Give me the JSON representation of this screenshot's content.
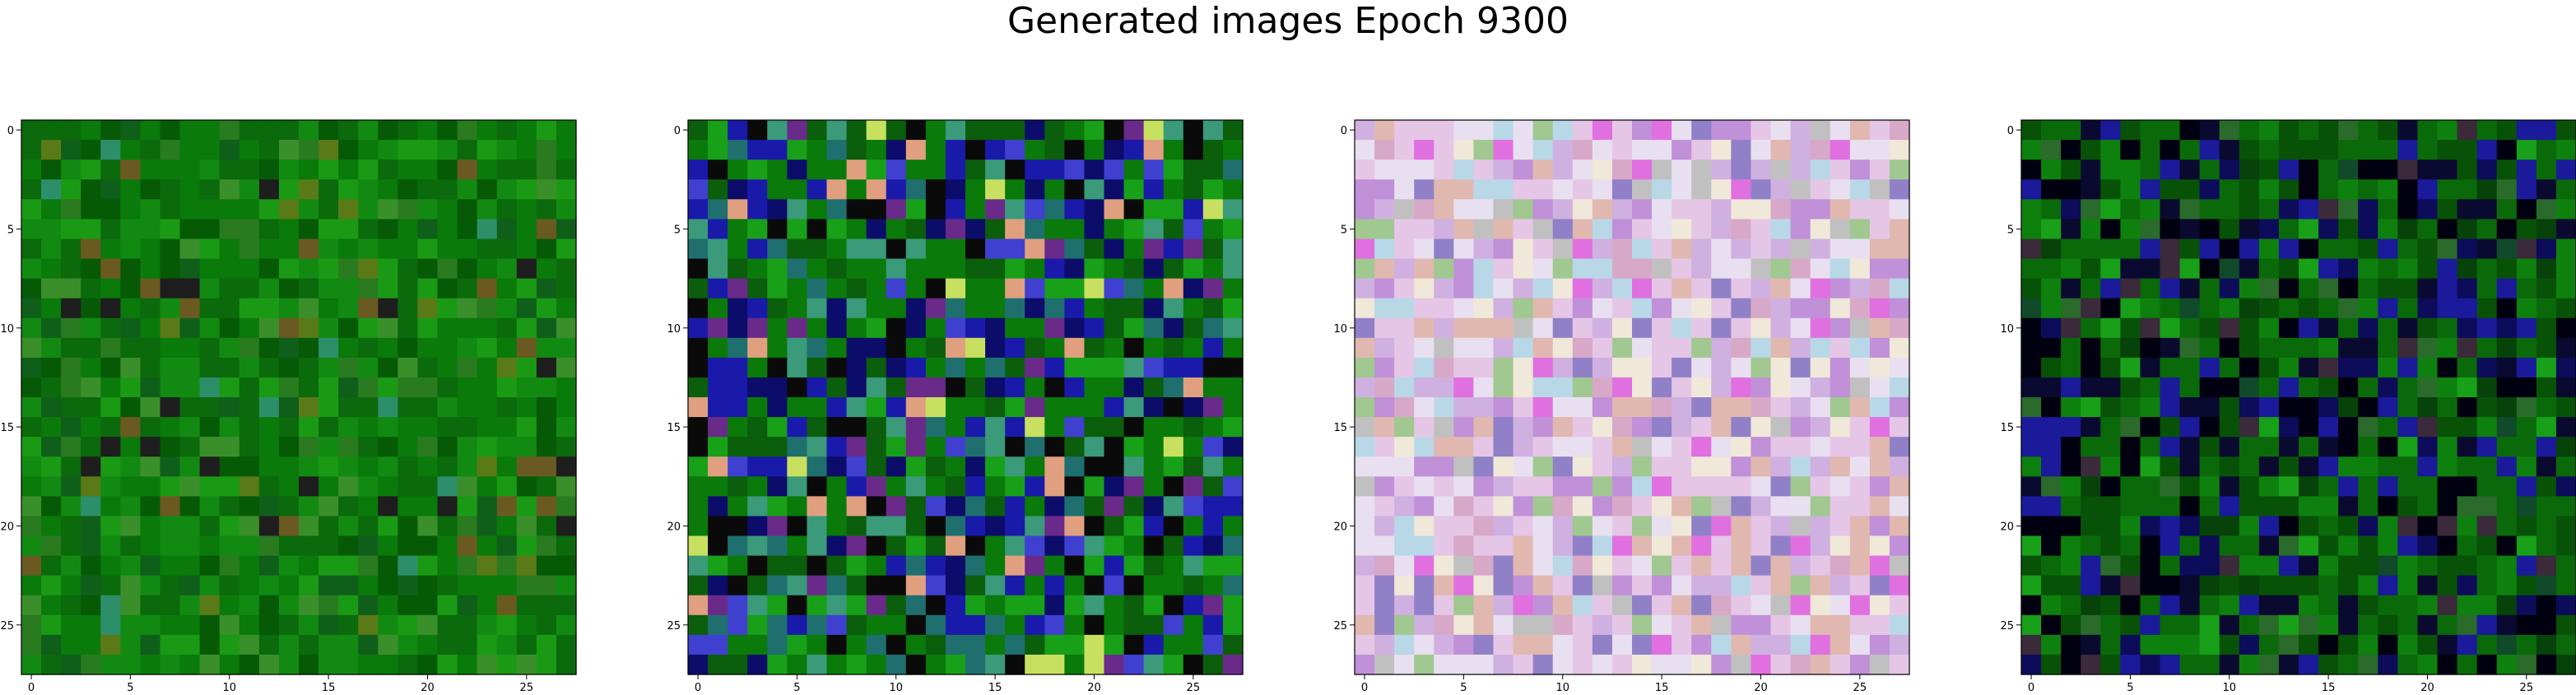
{
  "title": "Generated images Epoch 9300",
  "grid_size": 28,
  "ticks": [
    0,
    5,
    10,
    15,
    20,
    25
  ],
  "panels": [
    {
      "name": "image-1",
      "palette": [
        "#0a7a0a",
        "#0b6a0b",
        "#128a12",
        "#1a9a14",
        "#065a06",
        "#2a7a20",
        "#0f5f1a",
        "#3b8f2a",
        "#5a7a18",
        "#1e1e1e",
        "#2d8f6a",
        "#6a5a22"
      ],
      "weights": [
        22,
        18,
        14,
        10,
        10,
        6,
        6,
        5,
        3,
        2,
        2,
        2
      ],
      "seed": 11
    },
    {
      "name": "image-2",
      "palette": [
        "#0a7a0a",
        "#0b5e0b",
        "#18a018",
        "#0a0a0a",
        "#1a1aaa",
        "#0c0c6a",
        "#3a9a7a",
        "#6a2a8a",
        "#1f6f6f",
        "#c8e060",
        "#e0a080",
        "#4040d0"
      ],
      "weights": [
        18,
        14,
        10,
        10,
        10,
        8,
        8,
        5,
        6,
        2,
        3,
        6
      ],
      "seed": 23
    },
    {
      "name": "image-3",
      "palette": [
        "#e6c6e6",
        "#d0b0e0",
        "#e8e0f0",
        "#c090d8",
        "#b8d8e8",
        "#e0b8b0",
        "#a0c890",
        "#e070e0",
        "#f0e8d8",
        "#9080c8",
        "#c0c0c0",
        "#d8a8c8"
      ],
      "weights": [
        16,
        12,
        14,
        10,
        8,
        8,
        5,
        4,
        8,
        5,
        5,
        5
      ],
      "seed": 37
    },
    {
      "name": "image-4",
      "palette": [
        "#0a6a0a",
        "#085208",
        "#0e800e",
        "#000010",
        "#0a0a30",
        "#1a1a9a",
        "#0c0c5a",
        "#2a6a2a",
        "#18a018",
        "#3a2a3a",
        "#06420a",
        "#104a2a"
      ],
      "weights": [
        20,
        14,
        12,
        12,
        10,
        8,
        6,
        5,
        4,
        3,
        4,
        2
      ],
      "seed": 53
    }
  ]
}
